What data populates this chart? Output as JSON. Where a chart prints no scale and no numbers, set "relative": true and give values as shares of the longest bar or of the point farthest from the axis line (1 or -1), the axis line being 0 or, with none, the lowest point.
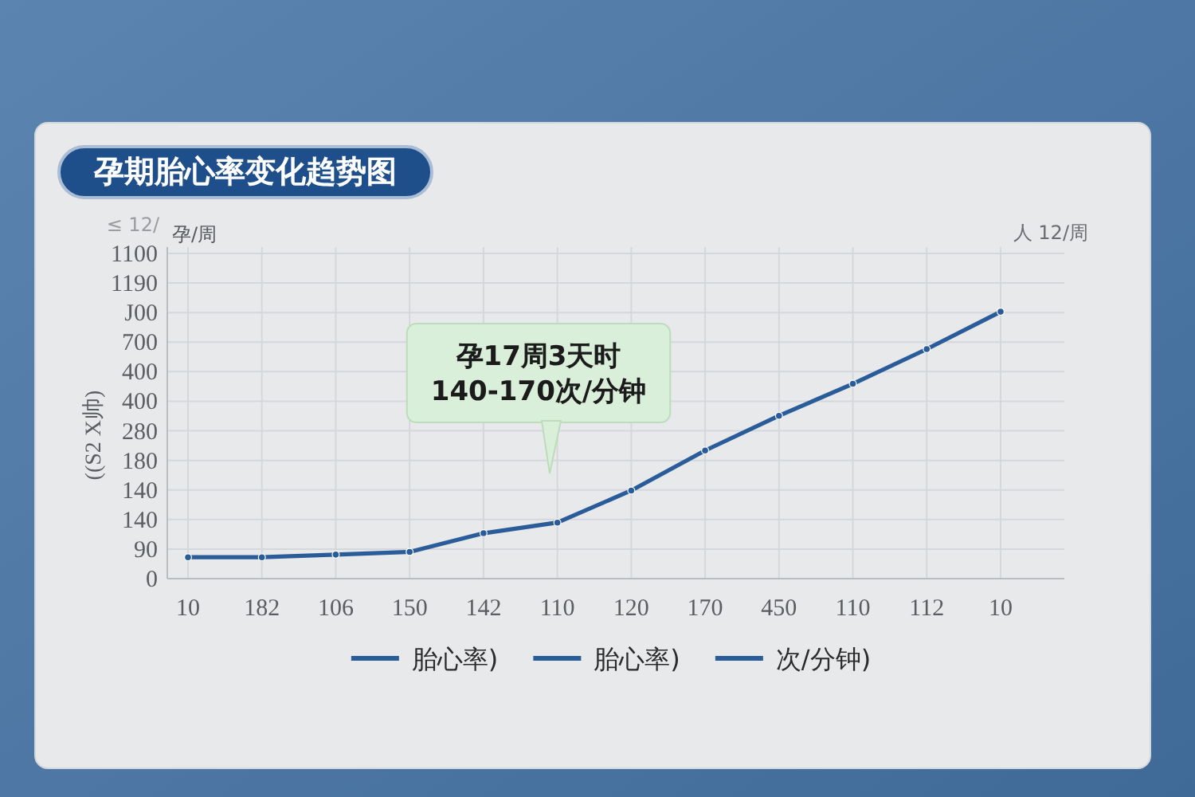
{
  "chart_data": {
    "type": "line",
    "title": "孕期胎心率变化趋势图",
    "ylabel": "((S2 X帅)",
    "relative": true,
    "categories": [
      "10",
      "182",
      "106",
      "150",
      "142",
      "110",
      "120",
      "170",
      "450",
      "110",
      "112",
      "10"
    ],
    "series": [
      {
        "name": "胎心率)",
        "color": "#2a5c9a",
        "values": [
          0.08,
          0.08,
          0.09,
          0.1,
          0.17,
          0.21,
          0.33,
          0.48,
          0.61,
          0.73,
          0.86,
          1
        ]
      },
      {
        "name": "胎心率)",
        "color": "#2a5c9a",
        "values": [
          null,
          null,
          null,
          null,
          null,
          null,
          null,
          null,
          null,
          null,
          null,
          null
        ]
      },
      {
        "name": "次/分钟)",
        "color": "#2a5c9a",
        "values": [
          null,
          null,
          null,
          null,
          null,
          null,
          null,
          null,
          null,
          null,
          null,
          null
        ]
      }
    ],
    "grid": true,
    "legend": "bottom",
    "marker": "circle",
    "line_style": "solid",
    "annotations": [
      "孕17周3天时\n140-170次/分钟",
      "孕/周",
      "人 12/周",
      "≤ 12/",
      "1100",
      "1190",
      "J00",
      "700",
      "400",
      "400",
      "280",
      "180",
      "140",
      "140",
      "90",
      "0"
    ]
  }
}
